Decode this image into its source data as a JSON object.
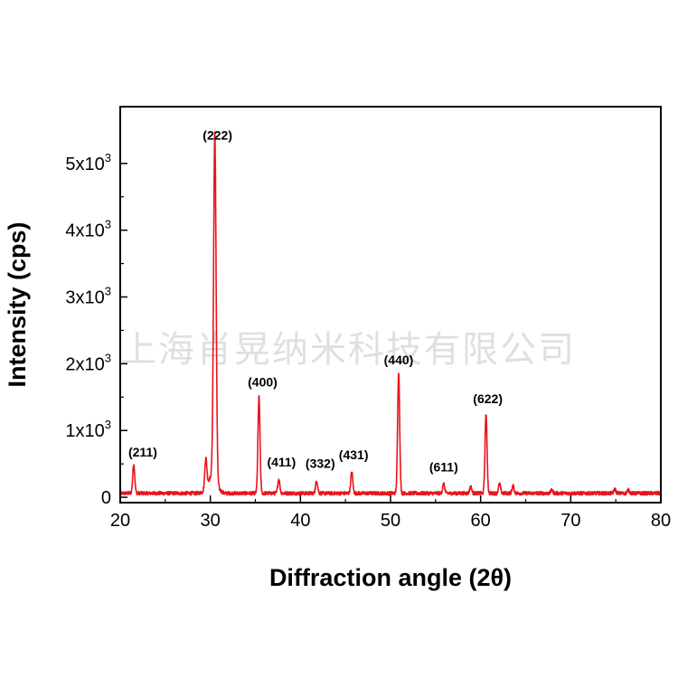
{
  "watermark": "上海肖晃纳米科技有限公司",
  "chart_data": {
    "type": "line",
    "xlabel": "Diffraction angle (2θ)",
    "ylabel": "Intensity (cps)",
    "xlim": [
      20,
      80
    ],
    "ylim": [
      -80,
      5850
    ],
    "x_ticks": [
      20,
      30,
      40,
      50,
      60,
      70,
      80
    ],
    "y_ticks": [
      {
        "value": 0,
        "label": "0"
      },
      {
        "value": 1000,
        "label": "1x10",
        "exp": "3"
      },
      {
        "value": 2000,
        "label": "2x10",
        "exp": "3"
      },
      {
        "value": 3000,
        "label": "3x10",
        "exp": "3"
      },
      {
        "value": 4000,
        "label": "4x10",
        "exp": "3"
      },
      {
        "value": 5000,
        "label": "5x10",
        "exp": "3"
      }
    ],
    "grid": false,
    "line_color": "#e8141c",
    "baseline": 60,
    "peaks": [
      {
        "x": 21.5,
        "y": 500,
        "label": "(211)"
      },
      {
        "x": 30.5,
        "y": 5250,
        "label": "(222)"
      },
      {
        "x": 35.4,
        "y": 1500,
        "label": "(400)"
      },
      {
        "x": 37.6,
        "y": 270,
        "label": "(411)"
      },
      {
        "x": 41.8,
        "y": 250,
        "label": "(332)"
      },
      {
        "x": 45.7,
        "y": 380,
        "label": "(431)"
      },
      {
        "x": 50.9,
        "y": 1880,
        "label": "(440)"
      },
      {
        "x": 55.9,
        "y": 200,
        "label": "(611)"
      },
      {
        "x": 60.6,
        "y": 1250,
        "label": "(622)"
      }
    ],
    "minor_peaks": [
      {
        "x": 29.5,
        "y": 500
      },
      {
        "x": 58.9,
        "y": 160
      },
      {
        "x": 62.1,
        "y": 200
      },
      {
        "x": 63.6,
        "y": 170
      },
      {
        "x": 67.9,
        "y": 110
      },
      {
        "x": 74.9,
        "y": 120
      },
      {
        "x": 76.4,
        "y": 110
      }
    ]
  }
}
